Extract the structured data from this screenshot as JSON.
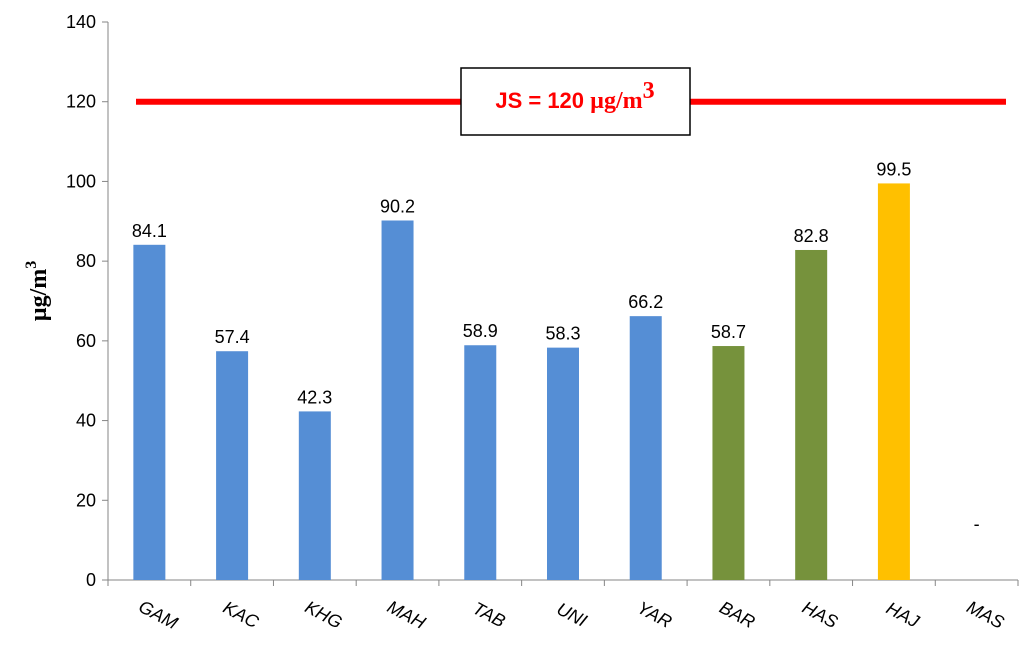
{
  "chart_data": {
    "type": "bar",
    "categories": [
      "GAM",
      "KAC",
      "KHG",
      "MAH",
      "TAB",
      "UNI",
      "YAR",
      "BAR",
      "HAS",
      "HAJ",
      "MAS"
    ],
    "values": [
      84.1,
      57.4,
      42.3,
      90.2,
      58.9,
      58.3,
      66.2,
      58.7,
      82.8,
      99.5,
      null
    ],
    "data_labels": [
      "84.1",
      "57.4",
      "42.3",
      "90.2",
      "58.9",
      "58.3",
      "66.2",
      "58.7",
      "82.8",
      "99.5",
      "-"
    ],
    "bar_colors": [
      "#558ed5",
      "#558ed5",
      "#558ed5",
      "#558ed5",
      "#558ed5",
      "#558ed5",
      "#558ed5",
      "#76923c",
      "#76923c",
      "#ffc000",
      "#558ed5"
    ],
    "ylabel": {
      "base": "µg/m",
      "sup": "3"
    },
    "ylim": [
      0,
      140
    ],
    "yticks": [
      0,
      20,
      40,
      60,
      80,
      100,
      120,
      140
    ],
    "grid": false,
    "reference_line": {
      "value": 120,
      "color": "#ff0000",
      "label": {
        "text": "JS = 120 ",
        "unit": "µg/m",
        "sup": "3"
      }
    }
  }
}
